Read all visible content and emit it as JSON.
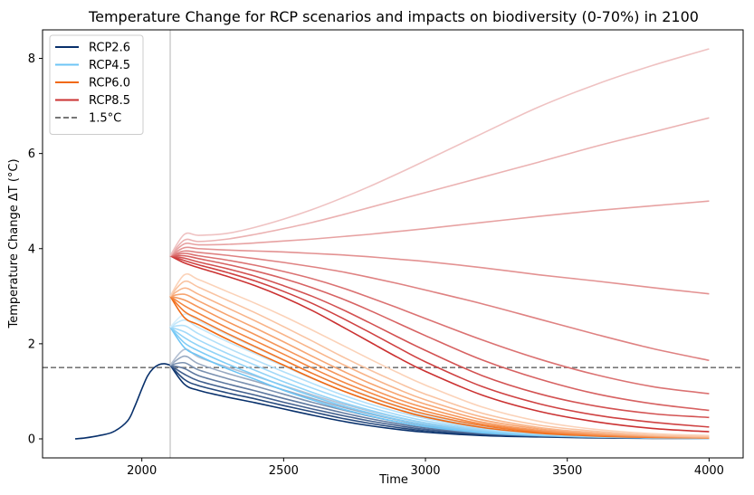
{
  "chart_data": {
    "type": "line",
    "title": "Temperature Change for RCP scenarios and impacts on biodiversity (0-70%) in 2100",
    "xlabel": "Time",
    "ylabel": "Temperature Change ΔT (°C)",
    "xlim": [
      1650,
      4120
    ],
    "ylim": [
      -0.4,
      8.6
    ],
    "xticks": [
      "2000",
      "2500",
      "3000",
      "3500",
      "4000"
    ],
    "xtick_values": [
      2000,
      2500,
      3000,
      3500,
      4000
    ],
    "yticks": [
      "0",
      "2",
      "4",
      "6",
      "8"
    ],
    "ytick_values": [
      0,
      2,
      4,
      6,
      8
    ],
    "grid": false,
    "legend_position": "top-left",
    "reference_lines": [
      {
        "type": "horizontal",
        "y": 1.5,
        "label": "1.5°C",
        "style": "dashed",
        "color": "#777777"
      },
      {
        "type": "vertical",
        "x": 2100,
        "color": "#cccccc"
      }
    ],
    "historical": {
      "x": [
        1765,
        1800,
        1850,
        1900,
        1950,
        1975,
        2000,
        2020,
        2040,
        2060,
        2080,
        2100
      ],
      "y": [
        0.0,
        0.02,
        0.07,
        0.15,
        0.38,
        0.68,
        1.05,
        1.32,
        1.48,
        1.56,
        1.58,
        1.55
      ],
      "color": "#08306b"
    },
    "series": [
      {
        "name": "RCP2.6",
        "color": "#08306b",
        "x": [
          2100,
          2150,
          2200,
          2300,
          2400,
          2500,
          2600,
          2700,
          2800,
          2900,
          3000,
          3200,
          3400,
          3600,
          3800,
          4000
        ],
        "members": [
          [
            1.55,
            1.15,
            1.02,
            0.88,
            0.76,
            0.63,
            0.5,
            0.38,
            0.28,
            0.2,
            0.14,
            0.07,
            0.04,
            0.02,
            0.01,
            0.01
          ],
          [
            1.55,
            1.25,
            1.12,
            0.97,
            0.84,
            0.7,
            0.57,
            0.44,
            0.33,
            0.24,
            0.17,
            0.09,
            0.05,
            0.03,
            0.02,
            0.01
          ],
          [
            1.55,
            1.36,
            1.22,
            1.06,
            0.92,
            0.77,
            0.63,
            0.5,
            0.38,
            0.28,
            0.2,
            0.11,
            0.06,
            0.03,
            0.02,
            0.01
          ],
          [
            1.55,
            1.48,
            1.33,
            1.16,
            1.01,
            0.85,
            0.7,
            0.56,
            0.43,
            0.32,
            0.23,
            0.12,
            0.07,
            0.04,
            0.02,
            0.01
          ],
          [
            1.55,
            1.6,
            1.45,
            1.27,
            1.11,
            0.94,
            0.77,
            0.62,
            0.48,
            0.36,
            0.26,
            0.14,
            0.08,
            0.04,
            0.02,
            0.01
          ],
          [
            1.55,
            1.74,
            1.58,
            1.38,
            1.21,
            1.03,
            0.85,
            0.68,
            0.53,
            0.4,
            0.29,
            0.15,
            0.08,
            0.04,
            0.02,
            0.01
          ],
          [
            1.55,
            1.88,
            1.72,
            1.51,
            1.32,
            1.12,
            0.93,
            0.75,
            0.59,
            0.45,
            0.33,
            0.17,
            0.09,
            0.05,
            0.03,
            0.01
          ]
        ]
      },
      {
        "name": "RCP4.5",
        "color": "#6ec5f5",
        "x": [
          2100,
          2150,
          2200,
          2300,
          2400,
          2500,
          2600,
          2700,
          2800,
          2900,
          3000,
          3200,
          3400,
          3600,
          3800,
          4000
        ],
        "members": [
          [
            2.35,
            1.92,
            1.75,
            1.48,
            1.25,
            1.02,
            0.82,
            0.64,
            0.49,
            0.36,
            0.26,
            0.13,
            0.07,
            0.04,
            0.02,
            0.01
          ],
          [
            2.35,
            2.02,
            1.85,
            1.58,
            1.34,
            1.11,
            0.9,
            0.71,
            0.55,
            0.41,
            0.3,
            0.15,
            0.08,
            0.04,
            0.02,
            0.01
          ],
          [
            2.35,
            2.13,
            1.96,
            1.69,
            1.44,
            1.2,
            0.98,
            0.78,
            0.61,
            0.46,
            0.34,
            0.18,
            0.09,
            0.05,
            0.03,
            0.02
          ],
          [
            2.35,
            2.25,
            2.08,
            1.8,
            1.55,
            1.3,
            1.07,
            0.86,
            0.67,
            0.51,
            0.38,
            0.2,
            0.1,
            0.05,
            0.03,
            0.02
          ],
          [
            2.35,
            2.38,
            2.21,
            1.92,
            1.66,
            1.41,
            1.17,
            0.94,
            0.74,
            0.57,
            0.43,
            0.22,
            0.11,
            0.06,
            0.03,
            0.02
          ],
          [
            2.35,
            2.5,
            2.34,
            2.05,
            1.79,
            1.53,
            1.27,
            1.03,
            0.82,
            0.63,
            0.48,
            0.25,
            0.13,
            0.07,
            0.04,
            0.02
          ],
          [
            2.35,
            2.62,
            2.48,
            2.19,
            1.92,
            1.65,
            1.38,
            1.13,
            0.9,
            0.7,
            0.53,
            0.28,
            0.15,
            0.08,
            0.04,
            0.02
          ]
        ]
      },
      {
        "name": "RCP6.0",
        "color": "#f16913",
        "x": [
          2100,
          2150,
          2200,
          2300,
          2400,
          2500,
          2600,
          2700,
          2800,
          2900,
          3000,
          3200,
          3400,
          3600,
          3800,
          4000
        ],
        "members": [
          [
            3.0,
            2.55,
            2.4,
            2.1,
            1.82,
            1.55,
            1.28,
            1.03,
            0.81,
            0.62,
            0.46,
            0.24,
            0.12,
            0.06,
            0.03,
            0.02
          ],
          [
            3.0,
            2.68,
            2.52,
            2.22,
            1.94,
            1.66,
            1.38,
            1.12,
            0.89,
            0.69,
            0.52,
            0.28,
            0.14,
            0.07,
            0.04,
            0.02
          ],
          [
            3.0,
            2.8,
            2.64,
            2.34,
            2.06,
            1.78,
            1.49,
            1.22,
            0.98,
            0.76,
            0.58,
            0.31,
            0.16,
            0.08,
            0.04,
            0.02
          ],
          [
            3.0,
            2.92,
            2.77,
            2.47,
            2.19,
            1.9,
            1.61,
            1.33,
            1.07,
            0.84,
            0.65,
            0.35,
            0.18,
            0.1,
            0.05,
            0.03
          ],
          [
            3.0,
            3.04,
            2.9,
            2.61,
            2.33,
            2.04,
            1.74,
            1.45,
            1.18,
            0.94,
            0.73,
            0.4,
            0.21,
            0.11,
            0.06,
            0.03
          ],
          [
            3.0,
            3.17,
            3.04,
            2.76,
            2.48,
            2.19,
            1.89,
            1.59,
            1.31,
            1.05,
            0.82,
            0.46,
            0.24,
            0.13,
            0.07,
            0.04
          ],
          [
            3.0,
            3.31,
            3.19,
            2.92,
            2.65,
            2.36,
            2.06,
            1.75,
            1.46,
            1.19,
            0.94,
            0.54,
            0.29,
            0.16,
            0.08,
            0.05
          ],
          [
            3.0,
            3.45,
            3.35,
            3.1,
            2.85,
            2.58,
            2.29,
            1.99,
            1.69,
            1.4,
            1.13,
            0.67,
            0.37,
            0.2,
            0.11,
            0.07
          ]
        ]
      },
      {
        "name": "RCP8.5",
        "color": "#cb3232",
        "x": [
          2100,
          2150,
          2200,
          2300,
          2400,
          2500,
          2600,
          2700,
          2800,
          2900,
          3000,
          3200,
          3400,
          3600,
          3800,
          4000
        ],
        "members": [
          [
            3.85,
            3.7,
            3.6,
            3.42,
            3.22,
            2.98,
            2.7,
            2.38,
            2.05,
            1.72,
            1.42,
            0.92,
            0.58,
            0.36,
            0.22,
            0.15
          ],
          [
            3.85,
            3.75,
            3.66,
            3.5,
            3.32,
            3.1,
            2.85,
            2.56,
            2.25,
            1.93,
            1.62,
            1.1,
            0.74,
            0.5,
            0.35,
            0.25
          ],
          [
            3.85,
            3.8,
            3.72,
            3.58,
            3.42,
            3.22,
            3.0,
            2.74,
            2.45,
            2.15,
            1.86,
            1.33,
            0.95,
            0.69,
            0.53,
            0.45
          ],
          [
            3.85,
            3.85,
            3.79,
            3.67,
            3.53,
            3.37,
            3.18,
            2.96,
            2.71,
            2.44,
            2.17,
            1.66,
            1.26,
            0.95,
            0.74,
            0.6
          ],
          [
            3.85,
            3.9,
            3.85,
            3.76,
            3.65,
            3.52,
            3.37,
            3.19,
            2.98,
            2.76,
            2.53,
            2.08,
            1.68,
            1.35,
            1.1,
            0.95
          ],
          [
            3.85,
            3.95,
            3.92,
            3.86,
            3.79,
            3.71,
            3.62,
            3.52,
            3.4,
            3.27,
            3.13,
            2.84,
            2.52,
            2.2,
            1.9,
            1.65
          ],
          [
            3.85,
            4.02,
            4.0,
            3.97,
            3.95,
            3.93,
            3.9,
            3.87,
            3.83,
            3.78,
            3.73,
            3.6,
            3.45,
            3.32,
            3.18,
            3.05
          ],
          [
            3.85,
            4.1,
            4.08,
            4.09,
            4.12,
            4.16,
            4.2,
            4.25,
            4.3,
            4.36,
            4.42,
            4.55,
            4.68,
            4.8,
            4.9,
            5.0
          ],
          [
            3.85,
            4.18,
            4.15,
            4.2,
            4.3,
            4.42,
            4.55,
            4.7,
            4.86,
            5.02,
            5.18,
            5.5,
            5.82,
            6.15,
            6.45,
            6.75
          ],
          [
            3.85,
            4.3,
            4.28,
            4.32,
            4.45,
            4.62,
            4.82,
            5.05,
            5.3,
            5.57,
            5.85,
            6.42,
            6.98,
            7.45,
            7.85,
            8.2
          ]
        ]
      }
    ],
    "legend": [
      "RCP2.6",
      "RCP4.5",
      "RCP6.0",
      "RCP8.5",
      "1.5°C"
    ]
  }
}
